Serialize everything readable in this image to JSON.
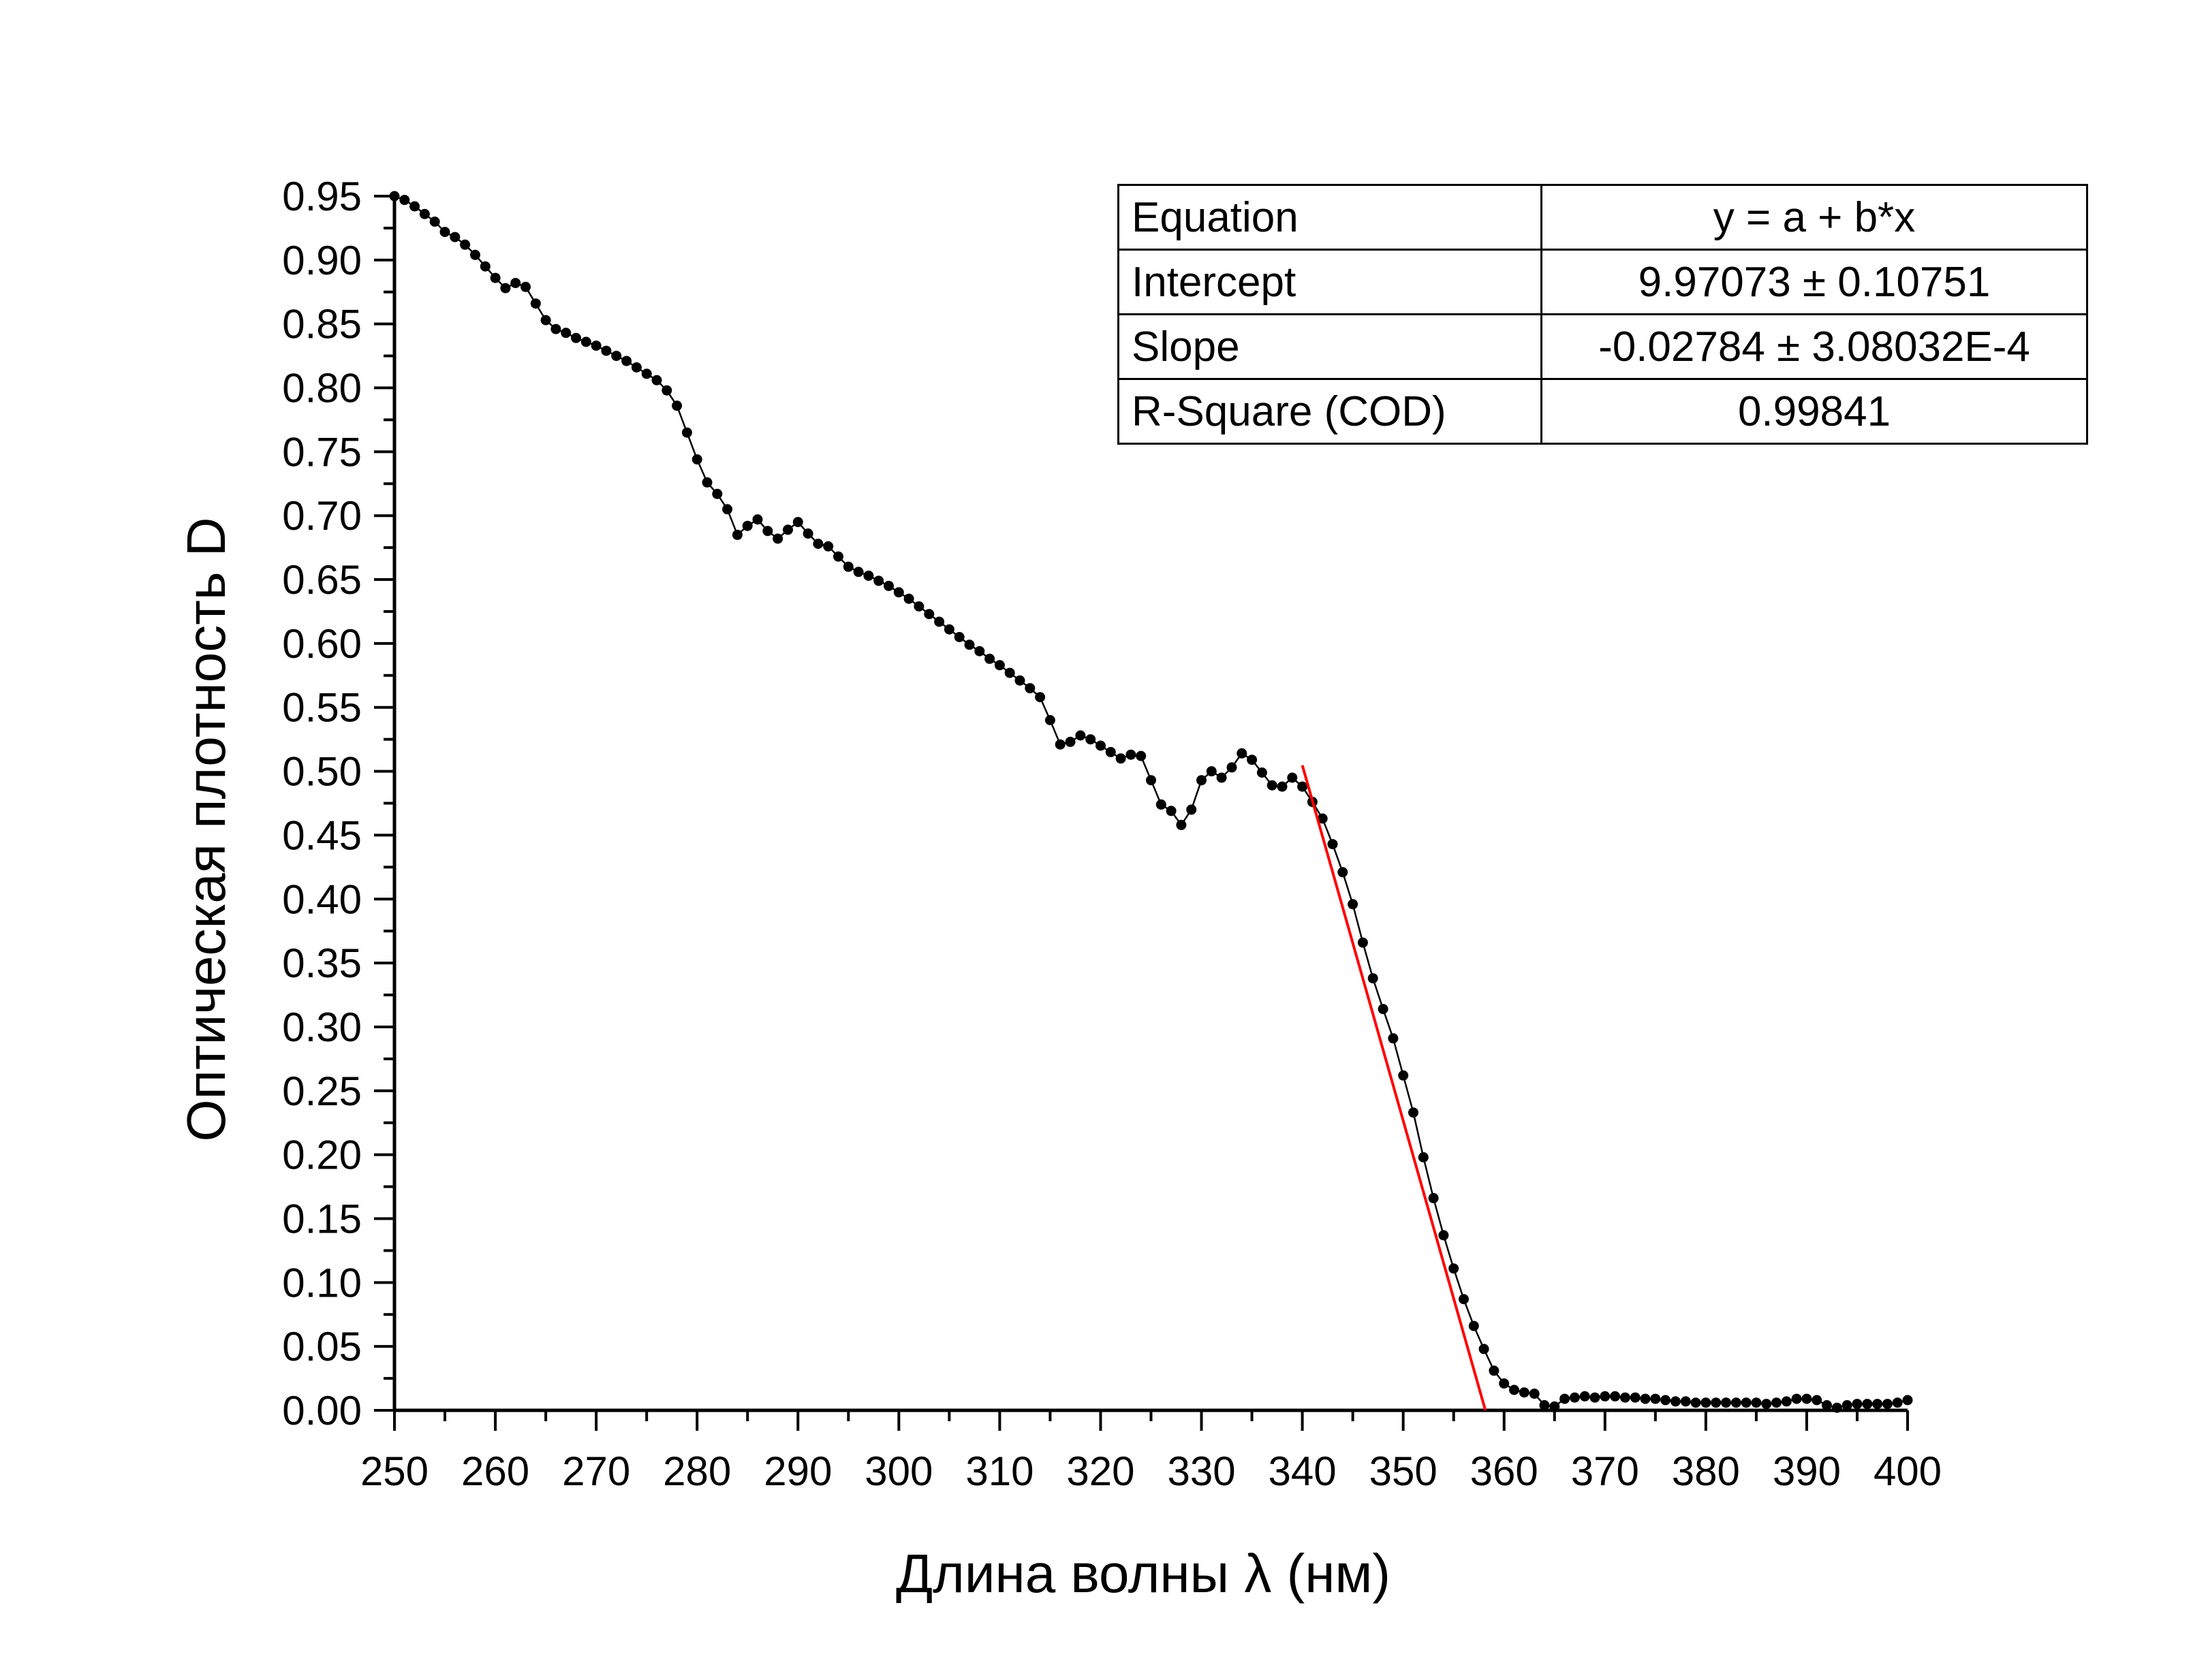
{
  "chart_data": {
    "type": "line",
    "xlabel": "Длина волны λ (нм)",
    "ylabel": "Оптическая плотность D",
    "xlim": [
      250,
      400
    ],
    "ylim": [
      0,
      0.95
    ],
    "x_ticks": [
      "250",
      "260",
      "270",
      "280",
      "290",
      "300",
      "310",
      "320",
      "330",
      "340",
      "350",
      "360",
      "370",
      "380",
      "390",
      "400"
    ],
    "y_ticks": [
      "0.00",
      "0.05",
      "0.10",
      "0.15",
      "0.20",
      "0.25",
      "0.30",
      "0.35",
      "0.40",
      "0.45",
      "0.50",
      "0.55",
      "0.60",
      "0.65",
      "0.70",
      "0.75",
      "0.80",
      "0.85",
      "0.90",
      "0.95"
    ],
    "grid": false,
    "legend": "none",
    "series": [
      {
        "color": "#000000",
        "marker": "circle",
        "points": [
          [
            250,
            0.95
          ],
          [
            251,
            0.947
          ],
          [
            252,
            0.942
          ],
          [
            253,
            0.936
          ],
          [
            254,
            0.93
          ],
          [
            255,
            0.922
          ],
          [
            256,
            0.918
          ],
          [
            257,
            0.912
          ],
          [
            258,
            0.904
          ],
          [
            259,
            0.895
          ],
          [
            260,
            0.886
          ],
          [
            261,
            0.878
          ],
          [
            262,
            0.882
          ],
          [
            263,
            0.879
          ],
          [
            264,
            0.866
          ],
          [
            265,
            0.853
          ],
          [
            266,
            0.846
          ],
          [
            267,
            0.843
          ],
          [
            268,
            0.839
          ],
          [
            269,
            0.836
          ],
          [
            270,
            0.833
          ],
          [
            271,
            0.829
          ],
          [
            272,
            0.825
          ],
          [
            273,
            0.821
          ],
          [
            274,
            0.816
          ],
          [
            275,
            0.811
          ],
          [
            276,
            0.806
          ],
          [
            277,
            0.798
          ],
          [
            278,
            0.786
          ],
          [
            279,
            0.765
          ],
          [
            280,
            0.744
          ],
          [
            281,
            0.726
          ],
          [
            282,
            0.717
          ],
          [
            283,
            0.705
          ],
          [
            284,
            0.685
          ],
          [
            285,
            0.692
          ],
          [
            286,
            0.697
          ],
          [
            287,
            0.688
          ],
          [
            288,
            0.682
          ],
          [
            289,
            0.689
          ],
          [
            290,
            0.695
          ],
          [
            291,
            0.686
          ],
          [
            292,
            0.678
          ],
          [
            293,
            0.676
          ],
          [
            294,
            0.668
          ],
          [
            295,
            0.66
          ],
          [
            296,
            0.656
          ],
          [
            297,
            0.653
          ],
          [
            298,
            0.649
          ],
          [
            299,
            0.645
          ],
          [
            300,
            0.64
          ],
          [
            301,
            0.635
          ],
          [
            302,
            0.629
          ],
          [
            303,
            0.623
          ],
          [
            304,
            0.617
          ],
          [
            305,
            0.611
          ],
          [
            306,
            0.605
          ],
          [
            307,
            0.599
          ],
          [
            308,
            0.594
          ],
          [
            309,
            0.588
          ],
          [
            310,
            0.583
          ],
          [
            311,
            0.577
          ],
          [
            312,
            0.571
          ],
          [
            313,
            0.565
          ],
          [
            314,
            0.558
          ],
          [
            315,
            0.54
          ],
          [
            316,
            0.521
          ],
          [
            317,
            0.523
          ],
          [
            318,
            0.528
          ],
          [
            319,
            0.525
          ],
          [
            320,
            0.52
          ],
          [
            321,
            0.515
          ],
          [
            322,
            0.51
          ],
          [
            323,
            0.513
          ],
          [
            324,
            0.512
          ],
          [
            325,
            0.493
          ],
          [
            326,
            0.474
          ],
          [
            327,
            0.469
          ],
          [
            328,
            0.458
          ],
          [
            329,
            0.47
          ],
          [
            330,
            0.493
          ],
          [
            331,
            0.5
          ],
          [
            332,
            0.495
          ],
          [
            333,
            0.503
          ],
          [
            334,
            0.514
          ],
          [
            335,
            0.509
          ],
          [
            336,
            0.499
          ],
          [
            337,
            0.489
          ],
          [
            338,
            0.488
          ],
          [
            339,
            0.495
          ],
          [
            340,
            0.488
          ],
          [
            341,
            0.476
          ],
          [
            342,
            0.463
          ],
          [
            343,
            0.443
          ],
          [
            344,
            0.421
          ],
          [
            345,
            0.396
          ],
          [
            346,
            0.366
          ],
          [
            347,
            0.338
          ],
          [
            348,
            0.314
          ],
          [
            349,
            0.291
          ],
          [
            350,
            0.262
          ],
          [
            351,
            0.233
          ],
          [
            352,
            0.198
          ],
          [
            353,
            0.166
          ],
          [
            354,
            0.137
          ],
          [
            355,
            0.111
          ],
          [
            356,
            0.087
          ],
          [
            357,
            0.066
          ],
          [
            358,
            0.048
          ],
          [
            359,
            0.031
          ],
          [
            360,
            0.021
          ],
          [
            361,
            0.016
          ],
          [
            362,
            0.014
          ],
          [
            363,
            0.013
          ],
          [
            364,
            0.004
          ],
          [
            365,
            0.003
          ],
          [
            366,
            0.009
          ],
          [
            367,
            0.01
          ],
          [
            368,
            0.011
          ],
          [
            369,
            0.01
          ],
          [
            370,
            0.011
          ],
          [
            371,
            0.011
          ],
          [
            372,
            0.01
          ],
          [
            373,
            0.01
          ],
          [
            374,
            0.009
          ],
          [
            375,
            0.009
          ],
          [
            376,
            0.008
          ],
          [
            377,
            0.007
          ],
          [
            378,
            0.007
          ],
          [
            379,
            0.006
          ],
          [
            380,
            0.006
          ],
          [
            381,
            0.006
          ],
          [
            382,
            0.006
          ],
          [
            383,
            0.006
          ],
          [
            384,
            0.006
          ],
          [
            385,
            0.006
          ],
          [
            386,
            0.005
          ],
          [
            387,
            0.006
          ],
          [
            388,
            0.007
          ],
          [
            389,
            0.009
          ],
          [
            390,
            0.009
          ],
          [
            391,
            0.008
          ],
          [
            392,
            0.004
          ],
          [
            393,
            0.002
          ],
          [
            394,
            0.004
          ],
          [
            395,
            0.005
          ],
          [
            396,
            0.005
          ],
          [
            397,
            0.005
          ],
          [
            398,
            0.005
          ],
          [
            399,
            0.006
          ],
          [
            400,
            0.008
          ]
        ]
      },
      {
        "color": "#ff0000",
        "marker": "none",
        "points": [
          [
            340,
            0.5047
          ],
          [
            358.146,
            0
          ]
        ]
      }
    ],
    "fit_table": [
      {
        "key": "Equation",
        "value": "y = a + b*x"
      },
      {
        "key": "Intercept",
        "value": "9.97073 ± 0.10751"
      },
      {
        "key": "Slope",
        "value": "-0.02784 ± 3.08032E-4"
      },
      {
        "key": "R-Square (COD)",
        "value": "0.99841"
      }
    ]
  }
}
